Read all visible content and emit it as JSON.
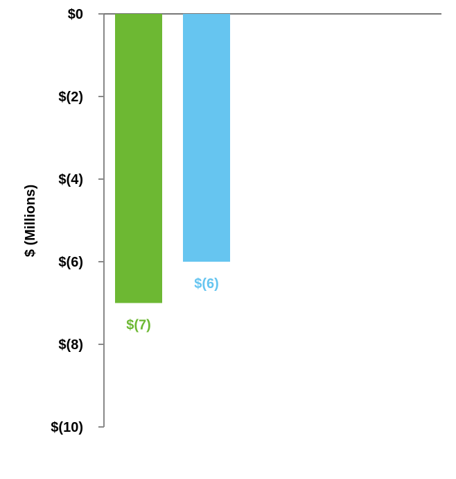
{
  "chart_data": {
    "type": "bar",
    "categories": [
      "",
      ""
    ],
    "values": [
      -7,
      -6
    ],
    "data_labels": [
      "$(7)",
      "$(6)"
    ],
    "colors": [
      "#6db833",
      "#66c5f0"
    ],
    "ylabel": "$ (Millions)",
    "ylim": [
      -10,
      0
    ],
    "yticks": [
      0,
      -2,
      -4,
      -6,
      -8,
      -10
    ],
    "ytick_labels": [
      "$0",
      "$(2)",
      "$(4)",
      "$(6)",
      "$(8)",
      "$(10)"
    ],
    "grid": false,
    "legend": "none"
  }
}
